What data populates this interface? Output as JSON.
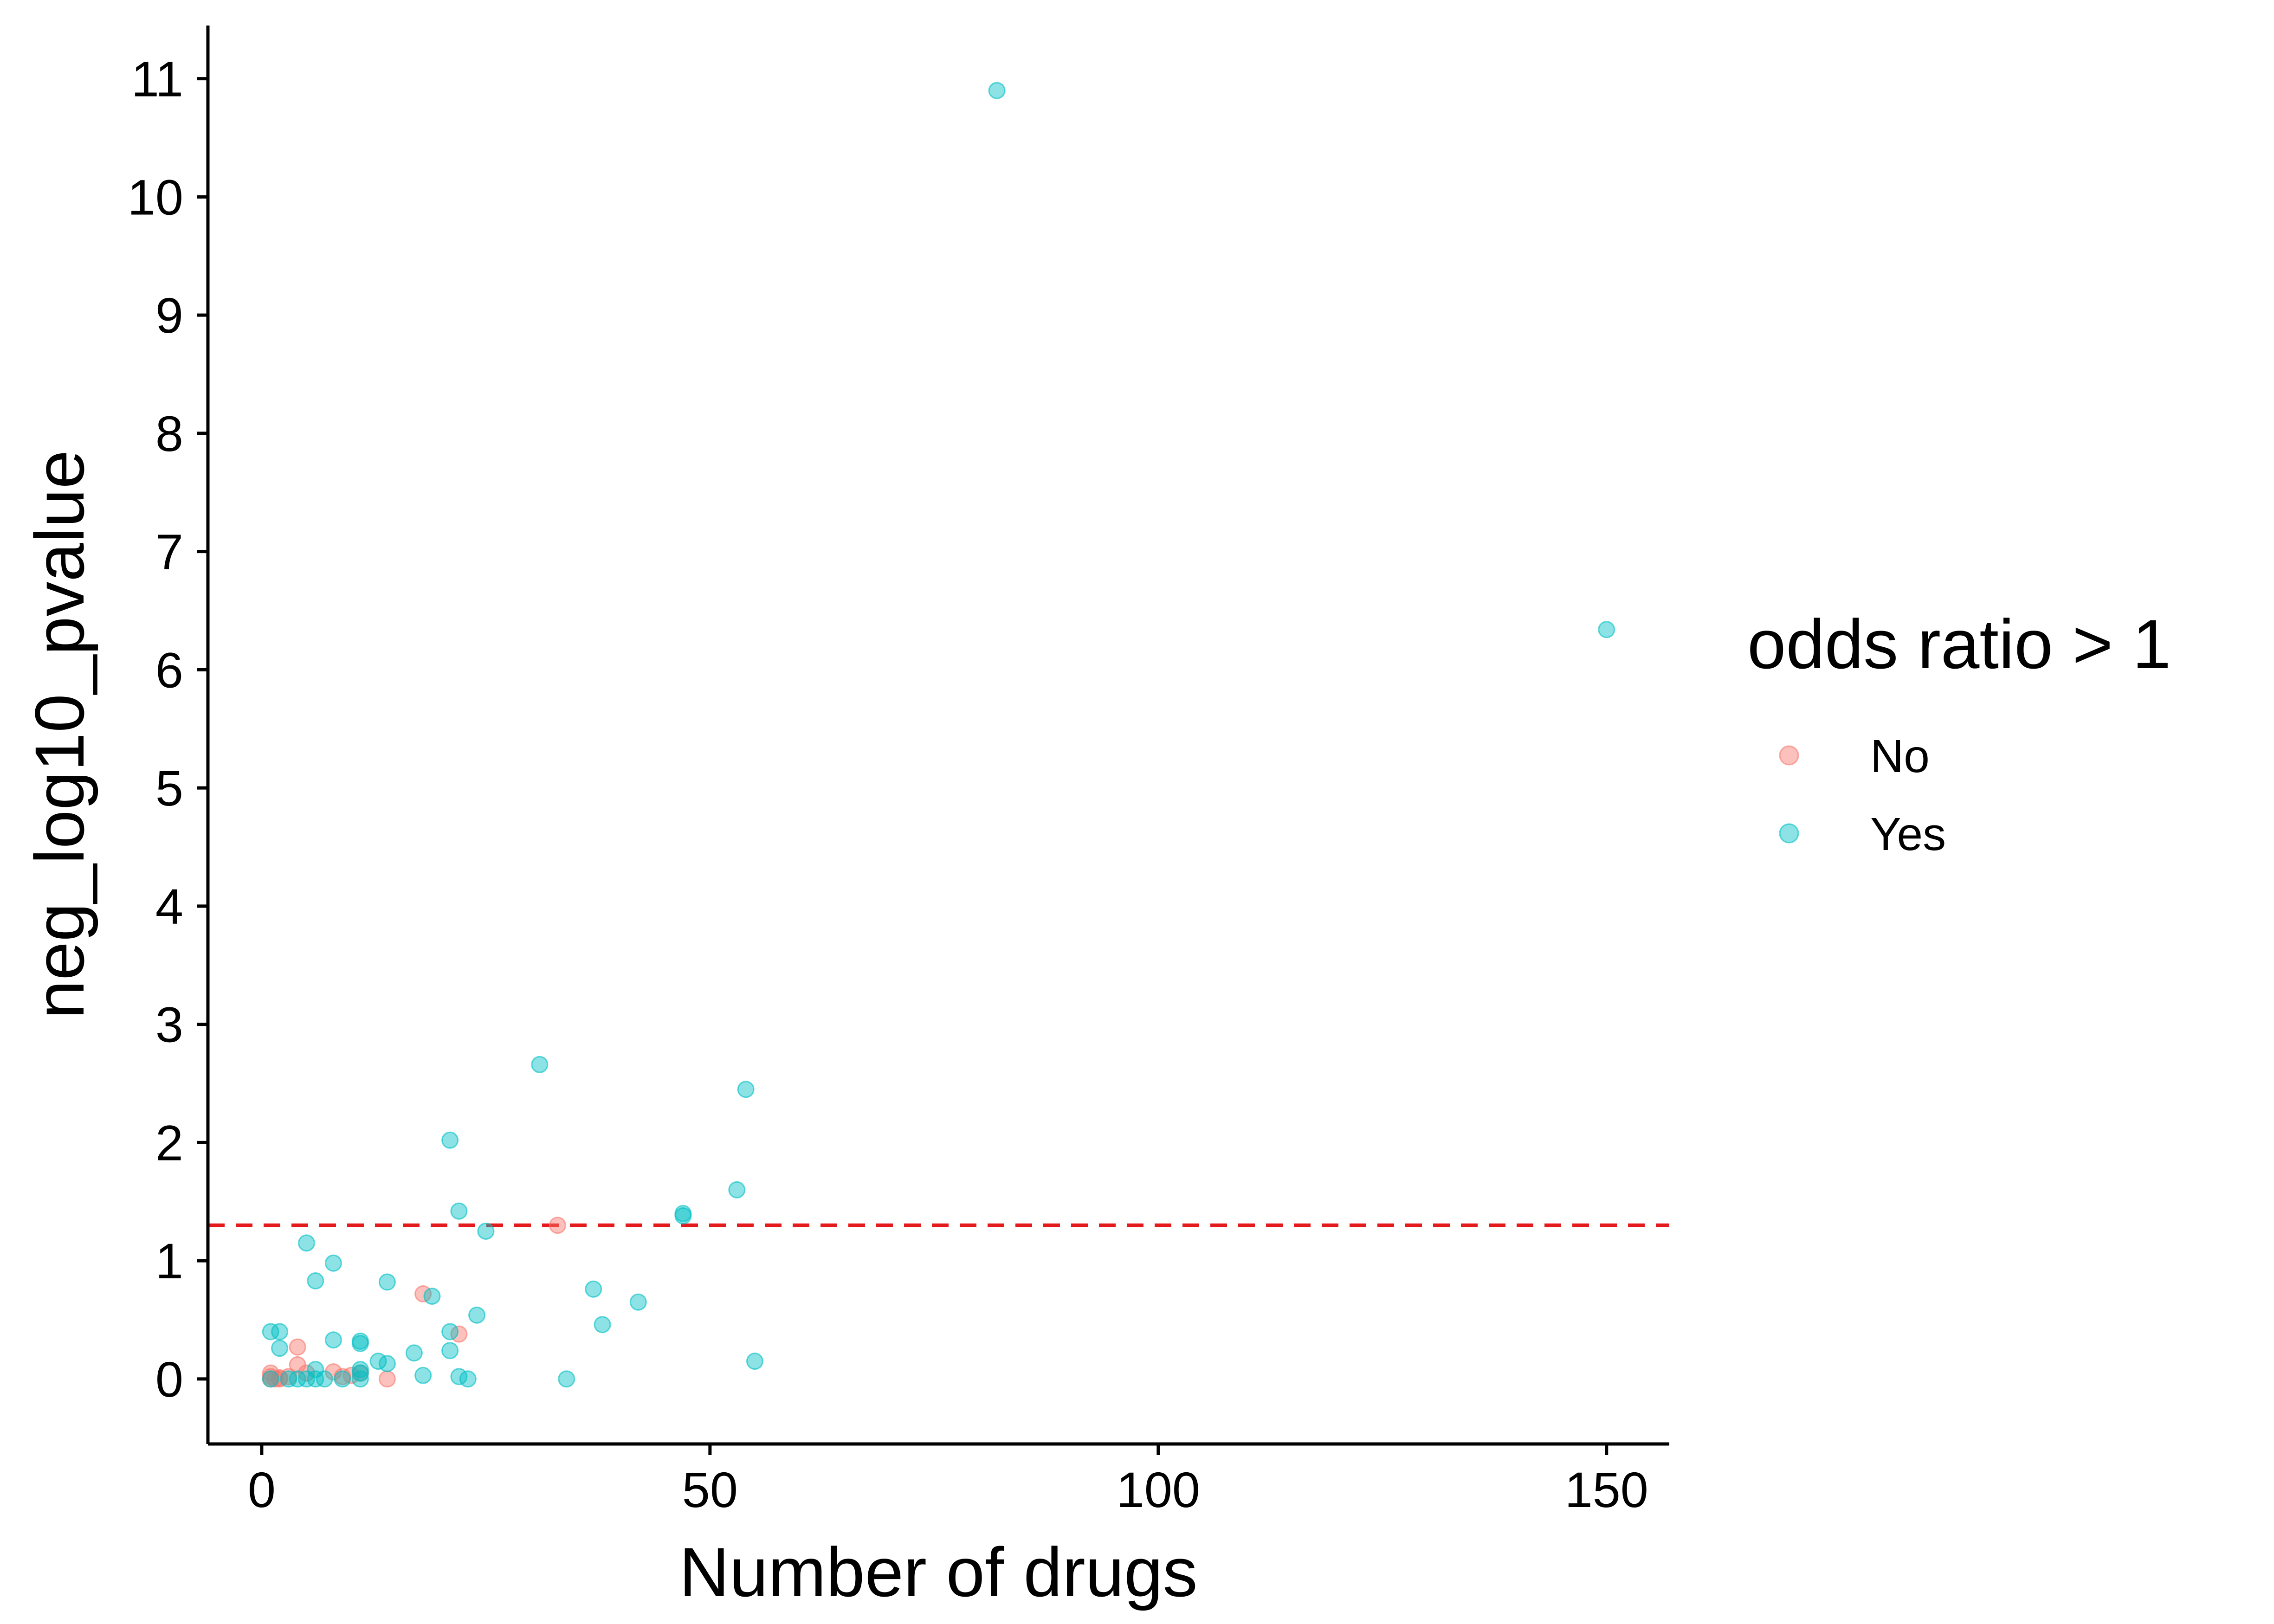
{
  "chart_data": {
    "type": "scatter",
    "title": "",
    "xlabel": "Number of drugs",
    "ylabel": "neg_log10_pvalue",
    "xlim": [
      -6,
      157
    ],
    "ylim": [
      -0.55,
      11.45
    ],
    "xticks": [
      0,
      50,
      100,
      150
    ],
    "yticks": [
      0,
      1,
      2,
      3,
      4,
      5,
      6,
      7,
      8,
      9,
      10,
      11
    ],
    "grid": false,
    "reference_line": {
      "y": 1.3,
      "color": "#e41a1c",
      "style": "dashed"
    },
    "legend": {
      "title": "odds ratio > 1",
      "placement": "right",
      "entries": [
        {
          "label": "No",
          "color": "#F8766D"
        },
        {
          "label": "Yes",
          "color": "#00BFC4"
        }
      ]
    },
    "series": [
      {
        "name": "No",
        "color": "#F8766D",
        "points": [
          [
            1,
            0
          ],
          [
            1,
            0.05
          ],
          [
            1,
            0.02
          ],
          [
            2,
            0
          ],
          [
            2,
            0.01
          ],
          [
            3,
            0.02
          ],
          [
            1.5,
            0
          ],
          [
            4,
            0.27
          ],
          [
            4,
            0.12
          ],
          [
            5,
            0.05
          ],
          [
            8,
            0.06
          ],
          [
            9,
            0.02
          ],
          [
            10,
            0.03
          ],
          [
            11,
            0.05
          ],
          [
            14,
            0
          ],
          [
            18,
            0.72
          ],
          [
            22,
            0.38
          ],
          [
            33,
            1.3
          ]
        ]
      },
      {
        "name": "Yes",
        "color": "#00BFC4",
        "points": [
          [
            1,
            0.4
          ],
          [
            1,
            0
          ],
          [
            2,
            0.4
          ],
          [
            2,
            0.26
          ],
          [
            3,
            0
          ],
          [
            4,
            0
          ],
          [
            5,
            0
          ],
          [
            6,
            0
          ],
          [
            6,
            0.08
          ],
          [
            7,
            0
          ],
          [
            5,
            1.15
          ],
          [
            6,
            0.83
          ],
          [
            8,
            0.98
          ],
          [
            8,
            0.33
          ],
          [
            9,
            0
          ],
          [
            11,
            0.3
          ],
          [
            11,
            0.32
          ],
          [
            11,
            0.08
          ],
          [
            11,
            0
          ],
          [
            11,
            0.05
          ],
          [
            13,
            0.15
          ],
          [
            14,
            0.13
          ],
          [
            14,
            0.82
          ],
          [
            17,
            0.22
          ],
          [
            18,
            0.03
          ],
          [
            19,
            0.7
          ],
          [
            21,
            2.02
          ],
          [
            21,
            0.4
          ],
          [
            21,
            0.24
          ],
          [
            22,
            1.42
          ],
          [
            22,
            0.02
          ],
          [
            23,
            0
          ],
          [
            24,
            0.54
          ],
          [
            25,
            1.25
          ],
          [
            31,
            2.66
          ],
          [
            34,
            0
          ],
          [
            37,
            0.76
          ],
          [
            38,
            0.46
          ],
          [
            42,
            0.65
          ],
          [
            47,
            1.38
          ],
          [
            47,
            1.4
          ],
          [
            53,
            1.6
          ],
          [
            54,
            2.45
          ],
          [
            55,
            0.15
          ],
          [
            82,
            10.9
          ],
          [
            150,
            6.34
          ]
        ]
      }
    ]
  }
}
